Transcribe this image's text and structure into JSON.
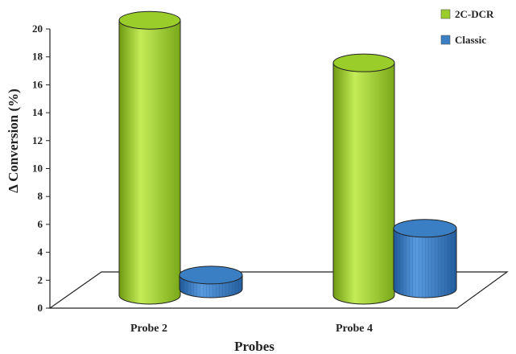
{
  "chart_data": {
    "type": "bar",
    "title": "",
    "xlabel": "Probes",
    "ylabel": "Δ Conversion (%)",
    "categories": [
      "Probe 2",
      "Probe 4"
    ],
    "series": [
      {
        "name": "2C-DCR",
        "values": [
          20.0,
          16.9
        ],
        "color": "#9acd2a"
      },
      {
        "name": "Classic",
        "values": [
          1.0,
          4.4
        ],
        "color": "#3a7fc4"
      }
    ],
    "ylim": [
      0,
      20
    ],
    "yticks": [
      0,
      2,
      4,
      6,
      8,
      10,
      12,
      14,
      16,
      18,
      20
    ],
    "grid": false,
    "legend_position": "top-right",
    "style": "3d-cylinder"
  }
}
